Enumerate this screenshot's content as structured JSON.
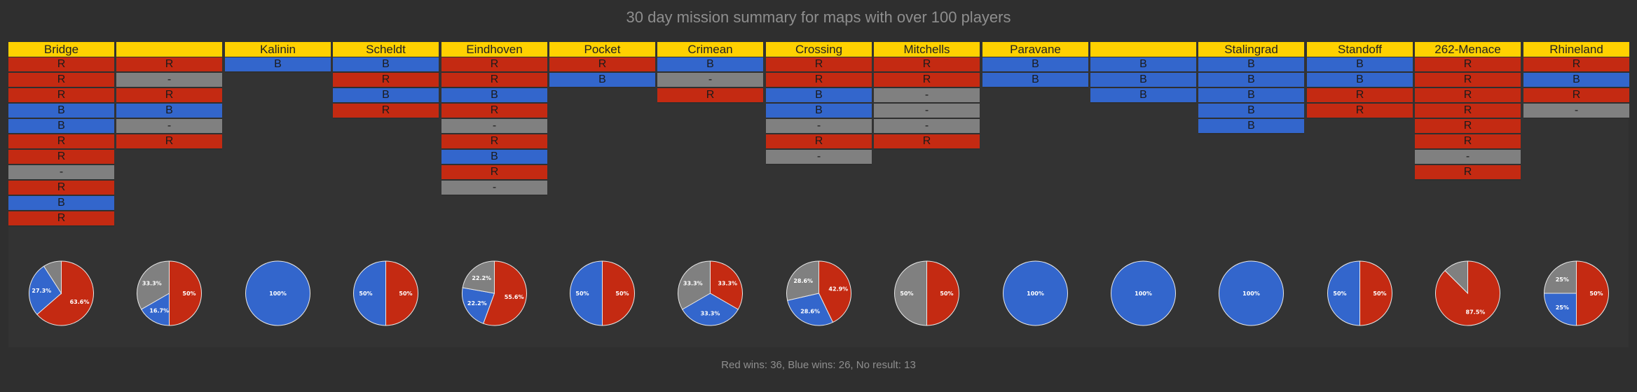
{
  "title": "30 day mission summary for maps with over 100 players",
  "footer": "Red wins: 36, Blue wins: 26, No result: 13",
  "colors": {
    "R": "#c42a12",
    "B": "#3366cc",
    "-": "#808080",
    "header": "#ffd100"
  },
  "chart_data": {
    "type": "pie",
    "maps": [
      {
        "name": "Bridge",
        "results": [
          "R",
          "R",
          "R",
          "B",
          "B",
          "R",
          "R",
          "-",
          "R",
          "B",
          "R"
        ],
        "slices": [
          {
            "result": "R",
            "pct": 63.6,
            "label": "63.6%"
          },
          {
            "result": "B",
            "pct": 27.3,
            "label": "27.3%"
          },
          {
            "result": "-",
            "pct": 9.1,
            "label": ""
          }
        ]
      },
      {
        "name": "",
        "results": [
          "R",
          "-",
          "R",
          "B",
          "-",
          "R"
        ],
        "slices": [
          {
            "result": "R",
            "pct": 50,
            "label": "50%"
          },
          {
            "result": "B",
            "pct": 16.7,
            "label": "16.7%"
          },
          {
            "result": "-",
            "pct": 33.3,
            "label": "33.3%"
          }
        ]
      },
      {
        "name": "Kalinin",
        "results": [
          "B"
        ],
        "slices": [
          {
            "result": "B",
            "pct": 100,
            "label": "100%"
          }
        ]
      },
      {
        "name": "Scheldt",
        "results": [
          "B",
          "R",
          "B",
          "R"
        ],
        "slices": [
          {
            "result": "R",
            "pct": 50,
            "label": "50%"
          },
          {
            "result": "B",
            "pct": 50,
            "label": "50%"
          }
        ]
      },
      {
        "name": "Eindhoven",
        "results": [
          "R",
          "R",
          "B",
          "R",
          "-",
          "R",
          "B",
          "R",
          "-"
        ],
        "slices": [
          {
            "result": "R",
            "pct": 55.6,
            "label": "55.6%"
          },
          {
            "result": "B",
            "pct": 22.2,
            "label": "22.2%"
          },
          {
            "result": "-",
            "pct": 22.2,
            "label": "22.2%"
          }
        ]
      },
      {
        "name": "Pocket",
        "results": [
          "R",
          "B"
        ],
        "slices": [
          {
            "result": "R",
            "pct": 50,
            "label": "50%"
          },
          {
            "result": "B",
            "pct": 50,
            "label": "50%"
          }
        ]
      },
      {
        "name": "Crimean",
        "results": [
          "B",
          "-",
          "R"
        ],
        "slices": [
          {
            "result": "R",
            "pct": 33.3,
            "label": "33.3%"
          },
          {
            "result": "B",
            "pct": 33.3,
            "label": "33.3%"
          },
          {
            "result": "-",
            "pct": 33.3,
            "label": "33.3%"
          }
        ]
      },
      {
        "name": "Crossing",
        "results": [
          "R",
          "R",
          "B",
          "B",
          "-",
          "R",
          "-"
        ],
        "slices": [
          {
            "result": "R",
            "pct": 42.9,
            "label": "42.9%"
          },
          {
            "result": "B",
            "pct": 28.6,
            "label": "28.6%"
          },
          {
            "result": "-",
            "pct": 28.6,
            "label": "28.6%"
          }
        ]
      },
      {
        "name": "Mitchells",
        "results": [
          "R",
          "R",
          "-",
          "-",
          "-",
          "R"
        ],
        "slices": [
          {
            "result": "R",
            "pct": 50,
            "label": "50%"
          },
          {
            "result": "-",
            "pct": 50,
            "label": "50%"
          }
        ]
      },
      {
        "name": "Paravane",
        "results": [
          "B",
          "B"
        ],
        "slices": [
          {
            "result": "B",
            "pct": 100,
            "label": "100%"
          }
        ]
      },
      {
        "name": "",
        "results": [
          "B",
          "B",
          "B"
        ],
        "slices": [
          {
            "result": "B",
            "pct": 100,
            "label": "100%"
          }
        ]
      },
      {
        "name": "Stalingrad",
        "results": [
          "B",
          "B",
          "B",
          "B",
          "B"
        ],
        "slices": [
          {
            "result": "B",
            "pct": 100,
            "label": "100%"
          }
        ]
      },
      {
        "name": "Standoff",
        "results": [
          "B",
          "B",
          "R",
          "R"
        ],
        "slices": [
          {
            "result": "R",
            "pct": 50,
            "label": "50%"
          },
          {
            "result": "B",
            "pct": 50,
            "label": "50%"
          }
        ]
      },
      {
        "name": "262-Menace",
        "results": [
          "R",
          "R",
          "R",
          "R",
          "R",
          "R",
          "-",
          "R"
        ],
        "slices": [
          {
            "result": "R",
            "pct": 87.5,
            "label": "87.5%"
          },
          {
            "result": "-",
            "pct": 12.5,
            "label": ""
          }
        ]
      },
      {
        "name": "Rhineland",
        "results": [
          "R",
          "B",
          "R",
          "-"
        ],
        "slices": [
          {
            "result": "R",
            "pct": 50,
            "label": "50%"
          },
          {
            "result": "B",
            "pct": 25,
            "label": "25%"
          },
          {
            "result": "-",
            "pct": 25,
            "label": "25%"
          }
        ]
      }
    ]
  }
}
